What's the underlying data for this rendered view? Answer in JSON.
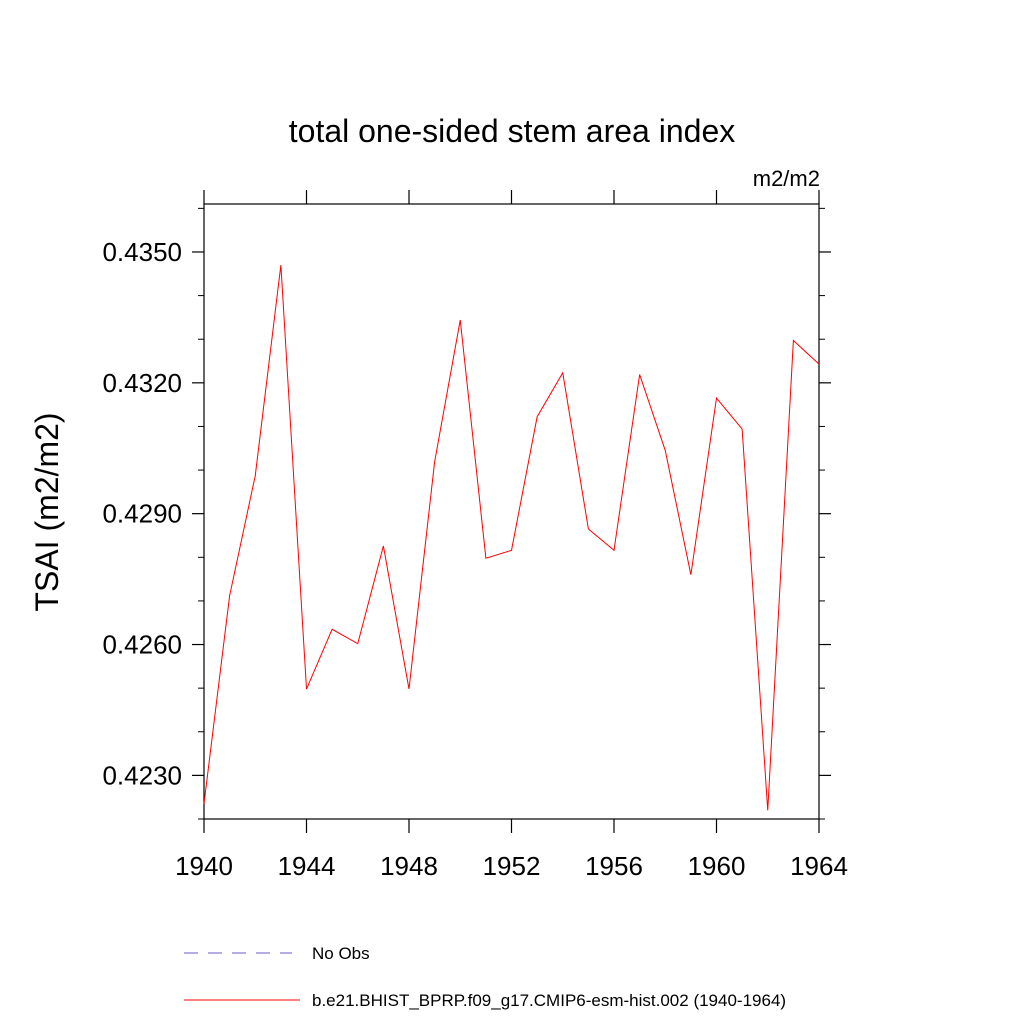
{
  "chart_data": {
    "type": "line",
    "title": "total one-sided stem area index",
    "units_label": "m2/m2",
    "ylabel": "TSAI  (m2/m2)",
    "xlabel": "",
    "xlim": [
      1940,
      1964
    ],
    "ylim": [
      0.422,
      0.4361
    ],
    "x_ticks": [
      1940,
      1944,
      1948,
      1952,
      1956,
      1960,
      1964
    ],
    "y_ticks": [
      0.423,
      0.426,
      0.429,
      0.432,
      0.435
    ],
    "y_tick_labels": [
      "0.4230",
      "0.4260",
      "0.4290",
      "0.4320",
      "0.4350"
    ],
    "grid": false,
    "legend_position": "bottom",
    "legend": [
      {
        "label": "No Obs",
        "color": "#6a5acd",
        "style": "dashed"
      },
      {
        "label": "b.e21.BHIST_BPRP.f09_g17.CMIP6-esm-hist.002 (1940-1964)",
        "color": "#ff0000",
        "style": "solid"
      }
    ],
    "series": [
      {
        "name": "b.e21.BHIST_BPRP.f09_g17.CMIP6-esm-hist.002 (1940-1964)",
        "color": "#ff0000",
        "x": [
          1940,
          1941,
          1942,
          1943,
          1944,
          1945,
          1946,
          1947,
          1948,
          1949,
          1950,
          1951,
          1952,
          1953,
          1954,
          1955,
          1956,
          1957,
          1958,
          1959,
          1960,
          1961,
          1962,
          1963,
          1964
        ],
        "values": [
          0.42235,
          0.42712,
          0.42987,
          0.4347,
          0.42498,
          0.42635,
          0.42602,
          0.42826,
          0.42498,
          0.43019,
          0.43344,
          0.42798,
          0.42816,
          0.43122,
          0.43223,
          0.42865,
          0.42816,
          0.43219,
          0.43045,
          0.4276,
          0.43165,
          0.43094,
          0.4222,
          0.43297,
          0.43243
        ]
      }
    ]
  }
}
